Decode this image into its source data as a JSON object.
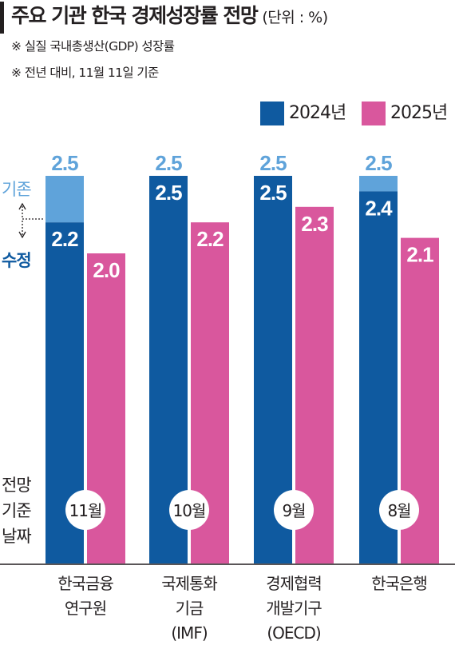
{
  "header": {
    "title": "주요 기관 한국 경제성장률 전망",
    "unit": "(단위 : %)",
    "notes": [
      "※ 실질 국내총생산(GDP) 성장률",
      "※ 전년 대비, 11월 11일 기준"
    ]
  },
  "legend": [
    {
      "label": "2024년",
      "color": "#0f5aa0"
    },
    {
      "label": "2025년",
      "color": "#d9579d"
    }
  ],
  "annotations": {
    "original": "기존",
    "revised": "수정",
    "date_label": [
      "전망",
      "기준",
      "날짜"
    ]
  },
  "colors": {
    "y2024": "#0f5aa0",
    "y2025": "#d9579d",
    "original": "#5fa3da",
    "original_text": "#5fa3da",
    "revised_text": "#0f5aa0"
  },
  "chart_data": {
    "type": "bar",
    "categories": [
      [
        "한국금융",
        "연구원"
      ],
      [
        "국제통화",
        "기금",
        "(IMF)"
      ],
      [
        "경제협력",
        "개발기구",
        "(OECD)"
      ],
      [
        "한국은행"
      ]
    ],
    "forecast_dates": [
      "11월",
      "10월",
      "9월",
      "8월"
    ],
    "series": [
      {
        "name": "2024년",
        "values": [
          2.2,
          2.5,
          2.5,
          2.4
        ],
        "original": [
          2.5,
          2.5,
          2.5,
          2.5
        ]
      },
      {
        "name": "2025년",
        "values": [
          2.0,
          2.2,
          2.3,
          2.1
        ]
      }
    ],
    "title": "주요 기관 한국 경제성장률 전망",
    "ylabel": "",
    "xlabel": ""
  }
}
